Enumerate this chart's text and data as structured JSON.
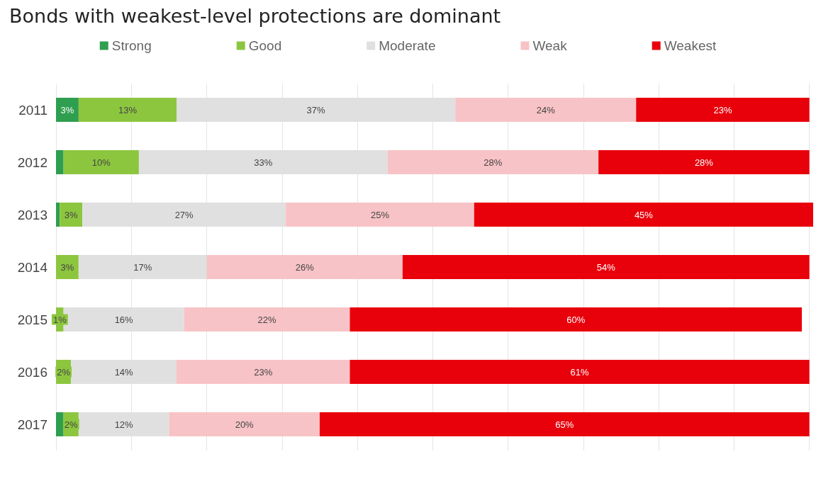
{
  "chart_data": {
    "type": "bar",
    "orientation": "horizontal",
    "stacked": true,
    "title": "Bonds with weakest-level protections are dominant",
    "categories": [
      "2011",
      "2012",
      "2013",
      "2014",
      "2015",
      "2016",
      "2017"
    ],
    "series": [
      {
        "name": "Strong",
        "color": "#2e9e4f",
        "values": [
          3,
          1,
          0.5,
          null,
          null,
          null,
          1
        ],
        "value_labels": [
          "3%",
          null,
          null,
          null,
          null,
          null,
          null
        ]
      },
      {
        "name": "Good",
        "color": "#8cc63f",
        "values": [
          13,
          10,
          3,
          3,
          1,
          2,
          2
        ],
        "value_labels": [
          "13%",
          "10%",
          "3%",
          "3%",
          "1%",
          "2%",
          "2%"
        ]
      },
      {
        "name": "Moderate",
        "color": "#e0e0e0",
        "values": [
          37,
          33,
          27,
          17,
          16,
          14,
          12
        ],
        "value_labels": [
          "37%",
          "33%",
          "27%",
          "17%",
          "16%",
          "14%",
          "12%"
        ]
      },
      {
        "name": "Weak",
        "color": "#f8c3c6",
        "values": [
          24,
          28,
          25,
          26,
          22,
          23,
          20
        ],
        "value_labels": [
          "24%",
          "28%",
          "25%",
          "26%",
          "22%",
          "23%",
          "20%"
        ]
      },
      {
        "name": "Weakest",
        "color": "#e8000b",
        "values": [
          23,
          28,
          45,
          54,
          60,
          61,
          65
        ],
        "value_labels": [
          "23%",
          "28%",
          "45%",
          "54%",
          "60%",
          "61%",
          "65%"
        ]
      }
    ],
    "xlim": [
      0,
      100.5
    ],
    "xticks": [
      {
        "value": 0,
        "label": null
      },
      {
        "value": 10,
        "label": null
      },
      {
        "value": 20,
        "label": null
      },
      {
        "value": 30,
        "label": null
      },
      {
        "value": 40,
        "label": null
      },
      {
        "value": 50,
        "label": null
      },
      {
        "value": 60,
        "label": null
      },
      {
        "value": 70,
        "label": null
      },
      {
        "value": 80,
        "label": null
      },
      {
        "value": 90,
        "label": null
      },
      {
        "value": 100,
        "label": null
      }
    ],
    "tick_labels": "y",
    "grid": "x",
    "legend": "top"
  }
}
